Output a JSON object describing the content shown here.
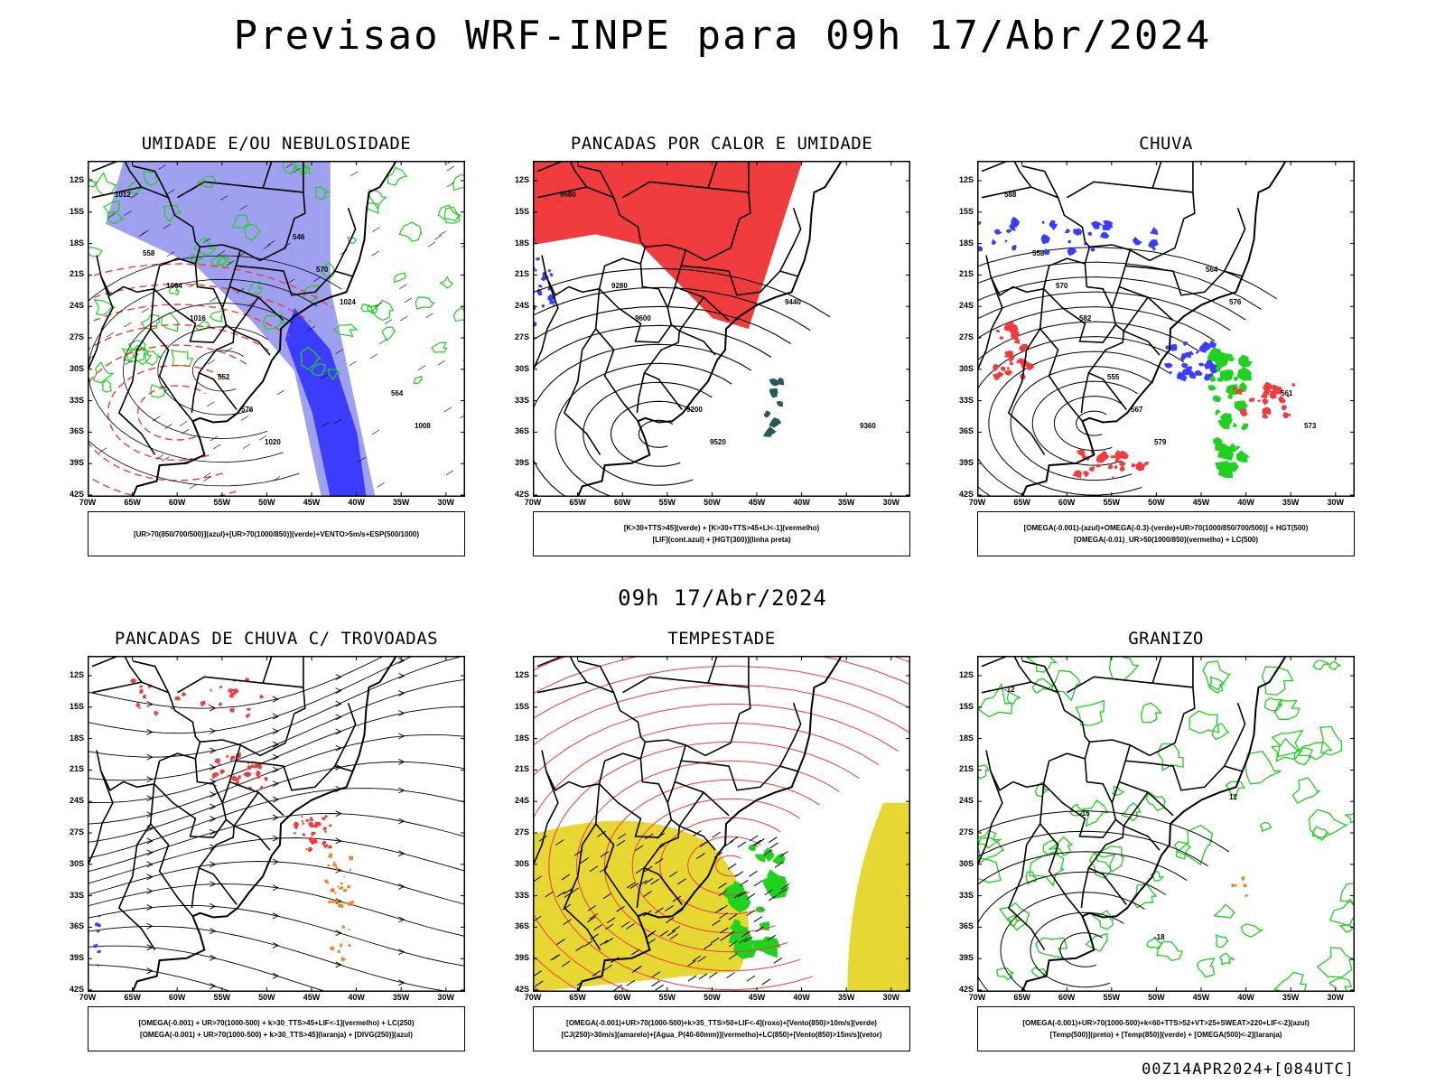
{
  "main_title": "Previsao WRF-INPE  para 09h 17/Abr/2024",
  "mid_date": "09h 17/Abr/2024",
  "footer": "00Z14APR2024+[084UTC]",
  "lat_labels": [
    "12S",
    "15S",
    "18S",
    "21S",
    "24S",
    "27S",
    "30S",
    "33S",
    "36S",
    "39S",
    "42S"
  ],
  "lon_labels": [
    "70W",
    "65W",
    "60W",
    "55W",
    "50W",
    "45W",
    "40W",
    "35W",
    "30W"
  ],
  "colors": {
    "red": "#f03c3c",
    "green": "#1ed21e",
    "blue": "#3c3cff",
    "light_blue": "#a0a0f0",
    "orange": "#f08228",
    "yellow": "#e6d732",
    "dark_teal": "#235a5a",
    "black": "#000000"
  },
  "panels": [
    {
      "title": "UMIDADE E/OU NEBULOSIDADE",
      "legend": [
        "[UR>70(850/700/500)](azul)+[UR>70(1000/850)](verde)+VENTO>5m/s+ESP(500/1000)"
      ],
      "contour_labels": [
        "1012",
        "1016",
        "1020",
        "1024",
        "1008",
        "1004",
        "576",
        "570",
        "564",
        "558",
        "552",
        "546"
      ]
    },
    {
      "title": "PANCADAS POR CALOR E UMIDADE",
      "legend": [
        "[K>30+TTS>45](verde) + [K>30+TTS>45+LI<-1](vermelho)",
        "[LIF](cont.azul) + [HGT(300)](linha preta)"
      ],
      "contour_labels": [
        "9680",
        "9600",
        "9520",
        "9440",
        "9360",
        "9280",
        "9200"
      ]
    },
    {
      "title": "CHUVA",
      "legend": [
        "[OMEGA(-0.001)-(azul)+OMEGA(-0.3)-(verde)+UR>70(1000/850/700/500)] + HGT(500)",
        "[OMEGA(-0.01)_UR>50(1000/850)(vermelho) + LC(500)"
      ],
      "contour_labels": [
        "588",
        "582",
        "579",
        "576",
        "573",
        "570",
        "567",
        "564",
        "561",
        "558",
        "555"
      ]
    },
    {
      "title": "PANCADAS DE CHUVA C/ TROVOADAS",
      "legend": [
        "[OMEGA(-0.001) + UR>70(1000-500) + k>30_TTS>45+LIF<-1](vermelho) + LC(250)",
        "[OMEGA(-0.001) + UR>70(1000-500) + k>30_TTS>45](laranja) + [DIVG(250)](azul)"
      ],
      "contour_labels": []
    },
    {
      "title": "TEMPESTADE",
      "legend": [
        "[OMEGA(-0.001)+UR>70(1000-500)+k>35_TTS>50+LIF<-4](roxo)+[Vento(850)>10m/s](verde)",
        "[CJ(250)>30m/s](amarelo)+[Agua_P(40-60mm)](vermelho)+LC(850)+[Vento(850)>15m/s](vetor)"
      ],
      "contour_labels": []
    },
    {
      "title": "GRANIZO",
      "legend": [
        "[OMEGA(-0.001)+UR>70(1000-500)+k<60+TTS>52+VT>25+SWEAT>220+LIF<-2](azul)",
        "[Temp(500)](preto) + [Temp(850)](verde) + [OMEGA(500)<-2](laranja)"
      ],
      "contour_labels": [
        "-12",
        "-15",
        "-18",
        "12"
      ]
    }
  ]
}
